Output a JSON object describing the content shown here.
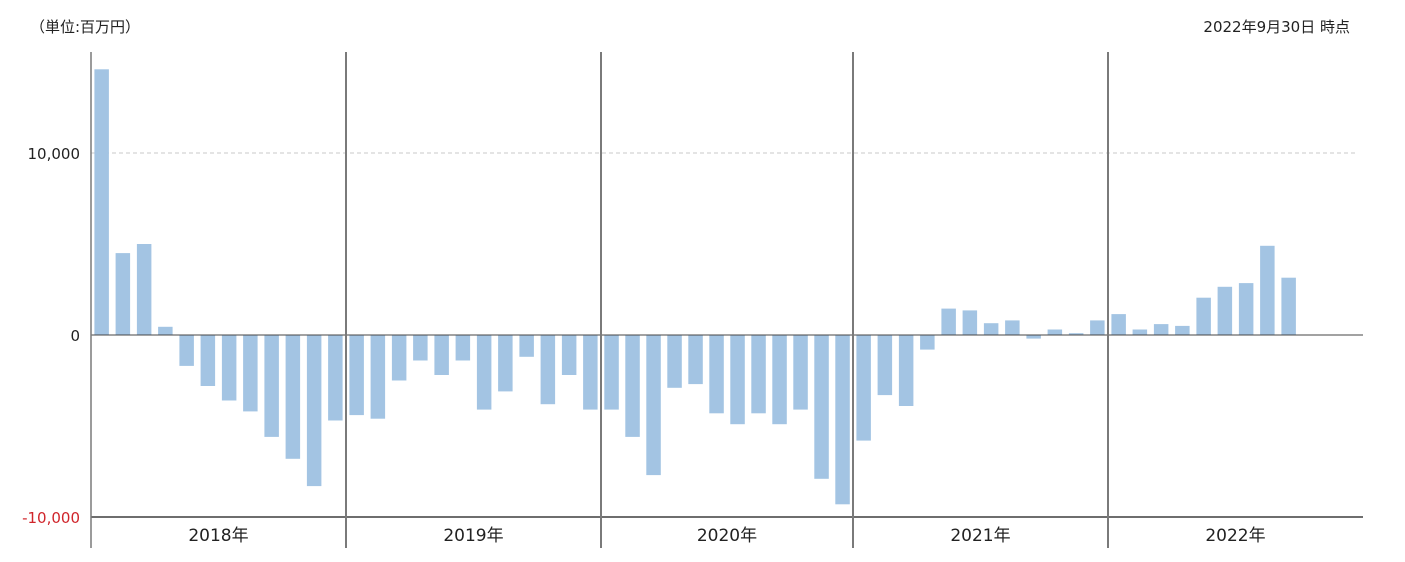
{
  "header": {
    "unit_label": "（単位:百万円）",
    "as_of_label": "2022年9月30日 時点"
  },
  "colors": {
    "bar": "#a3c4e3",
    "negative_tick": "#d0252b",
    "tick": "#222222",
    "grid": "#c8c8c8",
    "divider": "#7a7a7a"
  },
  "chart_data": {
    "type": "bar",
    "title": "",
    "xlabel": "",
    "ylabel": "",
    "ylim": [
      -10000,
      14500
    ],
    "y_ticks": [
      {
        "value": 10000,
        "label": "10,000"
      },
      {
        "value": 0,
        "label": "0"
      },
      {
        "value": -10000,
        "label": "-10,000"
      }
    ],
    "groups": [
      "2018年",
      "2019年",
      "2020年",
      "2021年",
      "2022年"
    ],
    "bars_per_group": 12,
    "grid": true,
    "legend": "none",
    "series": [
      {
        "values": [
          [
            14600,
            4500,
            5000,
            450,
            -1700,
            -2800,
            -3600,
            -4200,
            -5600,
            -6800,
            -8300,
            -4700
          ],
          [
            -4400,
            -4600,
            -2500,
            -1400,
            -2200,
            -1400,
            -4100,
            -3100,
            -1200,
            -3800,
            -2200,
            -4100
          ],
          [
            -4100,
            -5600,
            -7700,
            -2900,
            -2700,
            -4300,
            -4900,
            -4300,
            -4900,
            -4100,
            -7900,
            -9300
          ],
          [
            -5800,
            -3300,
            -3900,
            -800,
            1450,
            1350,
            650,
            800,
            -200,
            300,
            100,
            800
          ],
          [
            1150,
            300,
            600,
            500,
            2050,
            2650,
            2850,
            4900,
            3150,
            null,
            null,
            null
          ]
        ]
      }
    ]
  }
}
